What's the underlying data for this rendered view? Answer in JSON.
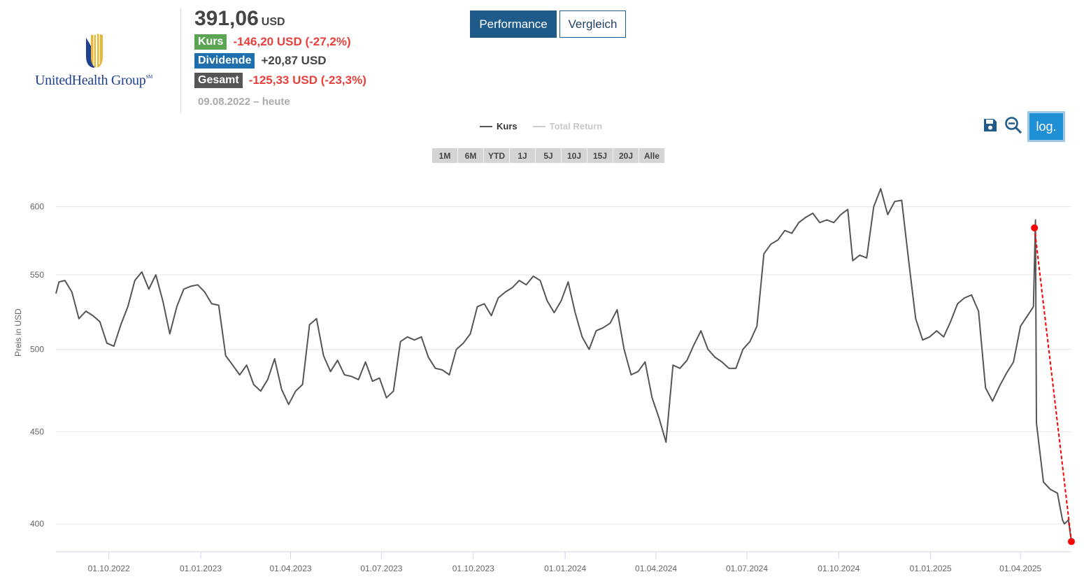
{
  "company": {
    "name": "UnitedHealth Group",
    "trademark": "SM"
  },
  "quote": {
    "price": "391,06",
    "currency": "USD"
  },
  "stats": [
    {
      "label": "Kurs",
      "value": "-146,20 USD (-27,2%)",
      "color": "#5aa454"
    },
    {
      "label": "Dividende",
      "value": "+20,87 USD",
      "color": "#1f6fae"
    },
    {
      "label": "Gesamt",
      "value": "-125,33 USD (-23,3%)",
      "color": "#555555"
    }
  ],
  "period": "09.08.2022 – heute",
  "buttons": {
    "performance": "Performance",
    "compare": "Vergleich",
    "log": "log.",
    "save_icon": "save-icon",
    "zoom_out_icon": "zoom-out-icon"
  },
  "legend": [
    {
      "label": "Kurs",
      "color": "#555555",
      "active": true
    },
    {
      "label": "Total Return",
      "color": "#cccccc",
      "active": false
    }
  ],
  "ranges": [
    "1M",
    "6M",
    "YTD",
    "1J",
    "5J",
    "10J",
    "15J",
    "20J",
    "Alle"
  ],
  "chart_data": {
    "type": "line",
    "ylabel": "Preis in USD",
    "scale": "log",
    "ylim": [
      386,
      625
    ],
    "xlim": [
      "2022-08-09",
      "2025-05-22"
    ],
    "yticks": [
      400,
      450,
      500,
      550,
      600
    ],
    "xticks": [
      "01.10.2022",
      "01.01.2023",
      "01.04.2023",
      "01.07.2023",
      "01.10.2023",
      "01.01.2024",
      "01.04.2024",
      "01.07.2024",
      "01.10.2024",
      "01.01.2025",
      "01.04.2025"
    ],
    "grid": true,
    "series": [
      {
        "name": "Kurs",
        "color": "#555555",
        "points": [
          [
            "2022-08-09",
            537
          ],
          [
            "2022-08-12",
            545
          ],
          [
            "2022-08-18",
            546
          ],
          [
            "2022-08-25",
            538
          ],
          [
            "2022-09-01",
            520
          ],
          [
            "2022-09-08",
            525
          ],
          [
            "2022-09-15",
            522
          ],
          [
            "2022-09-22",
            518
          ],
          [
            "2022-09-29",
            504
          ],
          [
            "2022-10-06",
            502
          ],
          [
            "2022-10-13",
            516
          ],
          [
            "2022-10-20",
            528
          ],
          [
            "2022-10-27",
            546
          ],
          [
            "2022-11-03",
            552
          ],
          [
            "2022-11-10",
            540
          ],
          [
            "2022-11-17",
            550
          ],
          [
            "2022-11-24",
            532
          ],
          [
            "2022-12-01",
            510
          ],
          [
            "2022-12-08",
            528
          ],
          [
            "2022-12-15",
            540
          ],
          [
            "2022-12-22",
            542
          ],
          [
            "2022-12-29",
            543
          ],
          [
            "2023-01-05",
            538
          ],
          [
            "2023-01-12",
            530
          ],
          [
            "2023-01-19",
            529
          ],
          [
            "2023-01-26",
            496
          ],
          [
            "2023-02-02",
            490
          ],
          [
            "2023-02-09",
            484
          ],
          [
            "2023-02-16",
            490
          ],
          [
            "2023-02-23",
            478
          ],
          [
            "2023-03-02",
            474
          ],
          [
            "2023-03-09",
            481
          ],
          [
            "2023-03-16",
            494
          ],
          [
            "2023-03-23",
            475
          ],
          [
            "2023-03-30",
            466
          ],
          [
            "2023-04-06",
            474
          ],
          [
            "2023-04-13",
            478
          ],
          [
            "2023-04-20",
            516
          ],
          [
            "2023-04-27",
            520
          ],
          [
            "2023-05-04",
            496
          ],
          [
            "2023-05-11",
            486
          ],
          [
            "2023-05-18",
            493
          ],
          [
            "2023-05-25",
            484
          ],
          [
            "2023-06-01",
            483
          ],
          [
            "2023-06-08",
            481
          ],
          [
            "2023-06-15",
            492
          ],
          [
            "2023-06-22",
            480
          ],
          [
            "2023-06-29",
            482
          ],
          [
            "2023-07-06",
            470
          ],
          [
            "2023-07-13",
            474
          ],
          [
            "2023-07-20",
            505
          ],
          [
            "2023-07-27",
            508
          ],
          [
            "2023-08-03",
            506
          ],
          [
            "2023-08-10",
            508
          ],
          [
            "2023-08-17",
            495
          ],
          [
            "2023-08-24",
            488
          ],
          [
            "2023-08-31",
            487
          ],
          [
            "2023-09-07",
            484
          ],
          [
            "2023-09-14",
            500
          ],
          [
            "2023-09-21",
            504
          ],
          [
            "2023-09-28",
            510
          ],
          [
            "2023-10-05",
            528
          ],
          [
            "2023-10-12",
            530
          ],
          [
            "2023-10-19",
            522
          ],
          [
            "2023-10-26",
            534
          ],
          [
            "2023-11-02",
            538
          ],
          [
            "2023-11-09",
            541
          ],
          [
            "2023-11-16",
            546
          ],
          [
            "2023-11-23",
            543
          ],
          [
            "2023-11-30",
            549
          ],
          [
            "2023-12-07",
            546
          ],
          [
            "2023-12-14",
            532
          ],
          [
            "2023-12-21",
            524
          ],
          [
            "2023-12-28",
            532
          ],
          [
            "2024-01-04",
            545
          ],
          [
            "2024-01-11",
            524
          ],
          [
            "2024-01-18",
            508
          ],
          [
            "2024-01-25",
            500
          ],
          [
            "2024-02-01",
            512
          ],
          [
            "2024-02-08",
            514
          ],
          [
            "2024-02-15",
            517
          ],
          [
            "2024-02-22",
            526
          ],
          [
            "2024-02-29",
            500
          ],
          [
            "2024-03-07",
            484
          ],
          [
            "2024-03-14",
            486
          ],
          [
            "2024-03-21",
            492
          ],
          [
            "2024-03-28",
            470
          ],
          [
            "2024-04-04",
            458
          ],
          [
            "2024-04-11",
            444
          ],
          [
            "2024-04-18",
            490
          ],
          [
            "2024-04-25",
            488
          ],
          [
            "2024-05-02",
            493
          ],
          [
            "2024-05-09",
            503
          ],
          [
            "2024-05-16",
            512
          ],
          [
            "2024-05-23",
            500
          ],
          [
            "2024-05-30",
            495
          ],
          [
            "2024-06-06",
            492
          ],
          [
            "2024-06-13",
            488
          ],
          [
            "2024-06-20",
            488
          ],
          [
            "2024-06-27",
            500
          ],
          [
            "2024-07-04",
            505
          ],
          [
            "2024-07-11",
            515
          ],
          [
            "2024-07-18",
            565
          ],
          [
            "2024-07-25",
            572
          ],
          [
            "2024-08-01",
            575
          ],
          [
            "2024-08-08",
            582
          ],
          [
            "2024-08-15",
            580
          ],
          [
            "2024-08-22",
            588
          ],
          [
            "2024-08-29",
            592
          ],
          [
            "2024-09-05",
            595
          ],
          [
            "2024-09-12",
            588
          ],
          [
            "2024-09-19",
            590
          ],
          [
            "2024-09-26",
            588
          ],
          [
            "2024-10-03",
            594
          ],
          [
            "2024-10-10",
            598
          ],
          [
            "2024-10-15",
            560
          ],
          [
            "2024-10-22",
            564
          ],
          [
            "2024-10-29",
            562
          ],
          [
            "2024-11-05",
            600
          ],
          [
            "2024-11-12",
            614
          ],
          [
            "2024-11-19",
            594
          ],
          [
            "2024-11-26",
            604
          ],
          [
            "2024-12-03",
            605
          ],
          [
            "2024-12-10",
            560
          ],
          [
            "2024-12-17",
            520
          ],
          [
            "2024-12-24",
            506
          ],
          [
            "2024-12-31",
            508
          ],
          [
            "2025-01-07",
            512
          ],
          [
            "2025-01-14",
            508
          ],
          [
            "2025-01-21",
            518
          ],
          [
            "2025-01-28",
            530
          ],
          [
            "2025-02-04",
            534
          ],
          [
            "2025-02-11",
            536
          ],
          [
            "2025-02-18",
            525
          ],
          [
            "2025-02-25",
            476
          ],
          [
            "2025-03-04",
            468
          ],
          [
            "2025-03-11",
            477
          ],
          [
            "2025-03-18",
            485
          ],
          [
            "2025-03-25",
            492
          ],
          [
            "2025-04-01",
            515
          ],
          [
            "2025-04-08",
            522
          ],
          [
            "2025-04-14",
            528
          ],
          [
            "2025-04-16",
            590
          ],
          [
            "2025-04-17",
            455
          ],
          [
            "2025-04-24",
            422
          ],
          [
            "2025-05-01",
            418
          ],
          [
            "2025-05-08",
            416
          ],
          [
            "2025-05-13",
            402
          ],
          [
            "2025-05-15",
            400
          ],
          [
            "2025-05-19",
            402
          ],
          [
            "2025-05-22",
            391.06
          ]
        ]
      }
    ],
    "markers": [
      {
        "x": "2025-04-15",
        "y": 584,
        "color": "#ff0000"
      },
      {
        "x": "2025-05-22",
        "y": 391.06,
        "color": "#ff0000"
      }
    ]
  }
}
